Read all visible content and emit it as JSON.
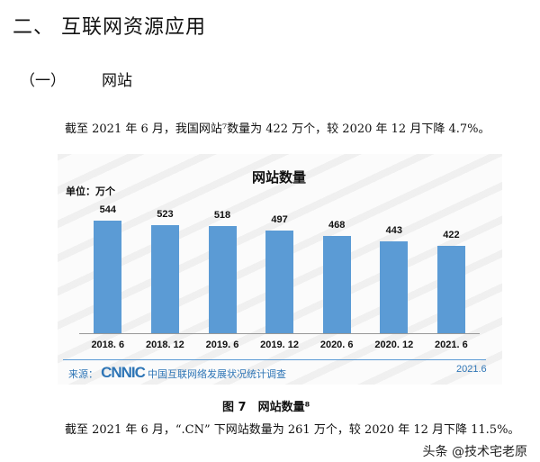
{
  "heading": "二、 互联网资源应用",
  "subheading": {
    "num": "（一）",
    "title": "网站"
  },
  "para1": "截至 2021 年 6 月，我国网站⁷数量为 422 万个，较 2020 年 12 月下降 4.7%。",
  "figure_caption": "图 7　网站数量⁸",
  "para2": "截至 2021 年 6 月，“.CN” 下网站数量为 261 万个，较 2020 年 12 月下降 11.5%。",
  "source": {
    "label": "来源：",
    "logo": "CNNIC",
    "text": "中国互联网络发展状况统计调查",
    "date": "2021.6"
  },
  "watermark": "头条 @技术宅老原",
  "colors": {
    "bar": "#5b9bd5",
    "source": "#2e75b6"
  },
  "chart_data": {
    "type": "bar",
    "title": "网站数量",
    "unit_label": "单位：万个",
    "categories": [
      "2018. 6",
      "2018. 12",
      "2019. 6",
      "2019. 12",
      "2020. 6",
      "2020. 12",
      "2021. 6"
    ],
    "values": [
      544,
      523,
      518,
      497,
      468,
      443,
      422
    ],
    "data_labels": [
      "544",
      "523",
      "518",
      "497",
      "468",
      "443",
      "422"
    ],
    "ylim": [
      0,
      600
    ],
    "grid": false,
    "legend": "none"
  }
}
